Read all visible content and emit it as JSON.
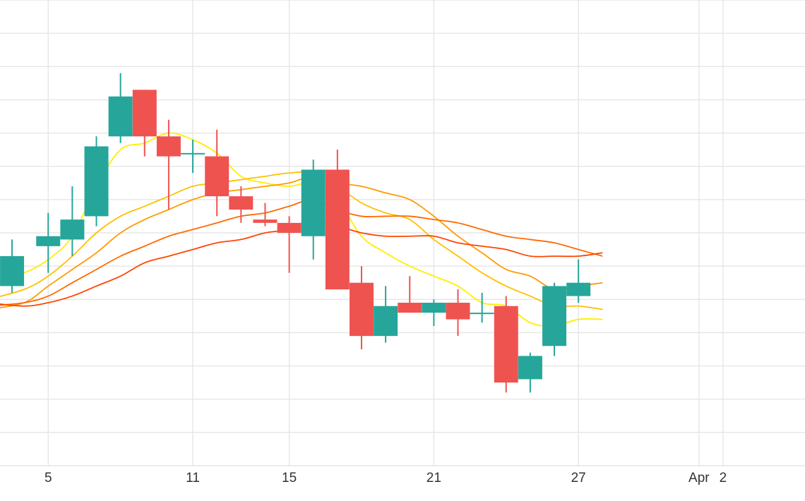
{
  "chart_data": {
    "type": "candlestick",
    "x_tick_labels": [
      {
        "label": "5",
        "day": 5
      },
      {
        "label": "11",
        "day": 11
      },
      {
        "label": "15",
        "day": 15
      },
      {
        "label": "21",
        "day": 21
      },
      {
        "label": "27",
        "day": 27
      },
      {
        "label": "Apr",
        "day": 32
      },
      {
        "label": "2",
        "day": 33
      }
    ],
    "xlim": [
      3,
      36.4
    ],
    "ylim": [
      0,
      14
    ],
    "grid": true,
    "colors": {
      "up": "#26a69a",
      "down": "#ef5350",
      "ma_lines": [
        "#ffee00",
        "#ffc000",
        "#ff9a00",
        "#ff6a00",
        "#ff4500"
      ],
      "grid": "#e6e6e6"
    },
    "candles": [
      {
        "day": 3.5,
        "open": 5.4,
        "high": 6.8,
        "low": 5.2,
        "close": 6.3
      },
      {
        "day": 5,
        "open": 6.6,
        "high": 7.6,
        "low": 5.8,
        "close": 6.9
      },
      {
        "day": 6,
        "open": 6.8,
        "high": 8.4,
        "low": 6.3,
        "close": 7.4
      },
      {
        "day": 7,
        "open": 7.5,
        "high": 9.9,
        "low": 7.2,
        "close": 9.6
      },
      {
        "day": 8,
        "open": 9.9,
        "high": 11.8,
        "low": 9.7,
        "close": 11.1
      },
      {
        "day": 9,
        "open": 11.3,
        "high": 11.3,
        "low": 9.3,
        "close": 9.9
      },
      {
        "day": 10,
        "open": 9.9,
        "high": 10.4,
        "low": 7.7,
        "close": 9.3
      },
      {
        "day": 11,
        "open": 9.4,
        "high": 9.8,
        "low": 8.8,
        "close": 9.4
      },
      {
        "day": 12,
        "open": 9.3,
        "high": 10.1,
        "low": 7.5,
        "close": 8.1
      },
      {
        "day": 13,
        "open": 8.1,
        "high": 8.4,
        "low": 7.3,
        "close": 7.7
      },
      {
        "day": 14,
        "open": 7.4,
        "high": 7.9,
        "low": 7.2,
        "close": 7.3
      },
      {
        "day": 15,
        "open": 7.3,
        "high": 7.5,
        "low": 5.8,
        "close": 7.0
      },
      {
        "day": 16,
        "open": 6.9,
        "high": 9.2,
        "low": 6.2,
        "close": 8.9
      },
      {
        "day": 17,
        "open": 8.9,
        "high": 9.5,
        "low": 5.3,
        "close": 5.3
      },
      {
        "day": 18,
        "open": 5.5,
        "high": 6.0,
        "low": 3.5,
        "close": 3.9
      },
      {
        "day": 19,
        "open": 3.9,
        "high": 5.4,
        "low": 3.7,
        "close": 4.8
      },
      {
        "day": 20,
        "open": 4.9,
        "high": 5.7,
        "low": 4.6,
        "close": 4.6
      },
      {
        "day": 21,
        "open": 4.6,
        "high": 5.0,
        "low": 4.2,
        "close": 4.9
      },
      {
        "day": 22,
        "open": 4.9,
        "high": 5.3,
        "low": 3.9,
        "close": 4.4
      },
      {
        "day": 23,
        "open": 4.6,
        "high": 5.2,
        "low": 4.3,
        "close": 4.6
      },
      {
        "day": 24,
        "open": 4.8,
        "high": 5.1,
        "low": 2.2,
        "close": 2.5
      },
      {
        "day": 25,
        "open": 2.6,
        "high": 3.4,
        "low": 2.2,
        "close": 3.3
      },
      {
        "day": 26,
        "open": 3.6,
        "high": 5.5,
        "low": 3.3,
        "close": 5.4
      },
      {
        "day": 27,
        "open": 5.1,
        "high": 6.2,
        "low": 4.9,
        "close": 5.5
      }
    ],
    "ma_series": [
      [
        [
          2.5,
          5.5
        ],
        [
          4,
          5.8
        ],
        [
          5,
          6.2
        ],
        [
          6,
          6.9
        ],
        [
          7,
          8.4
        ],
        [
          8,
          9.5
        ],
        [
          9,
          9.7
        ],
        [
          10,
          10.0
        ],
        [
          11,
          9.8
        ],
        [
          12,
          9.4
        ],
        [
          13,
          8.7
        ],
        [
          14,
          8.5
        ],
        [
          15,
          8.4
        ],
        [
          16,
          8.5
        ],
        [
          17,
          8.0
        ],
        [
          18,
          6.9
        ],
        [
          19,
          6.4
        ],
        [
          20,
          6.0
        ],
        [
          21,
          5.7
        ],
        [
          22,
          5.4
        ],
        [
          23,
          4.9
        ],
        [
          24,
          4.8
        ],
        [
          25,
          4.3
        ],
        [
          26,
          4.2
        ],
        [
          27,
          4.4
        ],
        [
          28,
          4.4
        ]
      ],
      [
        [
          2.5,
          5.0
        ],
        [
          4,
          5.3
        ],
        [
          5,
          5.7
        ],
        [
          6,
          6.3
        ],
        [
          7,
          7.0
        ],
        [
          8,
          7.5
        ],
        [
          9,
          7.8
        ],
        [
          10,
          8.1
        ],
        [
          11,
          8.4
        ],
        [
          12,
          8.5
        ],
        [
          13,
          8.6
        ],
        [
          14,
          8.7
        ],
        [
          15,
          8.8
        ],
        [
          16,
          8.8
        ],
        [
          17,
          8.4
        ],
        [
          18,
          7.9
        ],
        [
          19,
          7.6
        ],
        [
          20,
          7.4
        ],
        [
          21,
          6.8
        ],
        [
          22,
          6.3
        ],
        [
          23,
          5.8
        ],
        [
          24,
          5.4
        ],
        [
          25,
          5.1
        ],
        [
          26,
          4.8
        ],
        [
          27,
          4.8
        ],
        [
          28,
          4.7
        ]
      ],
      [
        [
          2.5,
          4.7
        ],
        [
          4,
          4.9
        ],
        [
          5,
          5.4
        ],
        [
          6,
          5.9
        ],
        [
          7,
          6.4
        ],
        [
          8,
          7.0
        ],
        [
          9,
          7.4
        ],
        [
          10,
          7.7
        ],
        [
          11,
          8.0
        ],
        [
          12,
          8.2
        ],
        [
          13,
          8.3
        ],
        [
          14,
          8.4
        ],
        [
          15,
          8.5
        ],
        [
          16,
          8.7
        ],
        [
          17,
          8.5
        ],
        [
          18,
          8.4
        ],
        [
          19,
          8.2
        ],
        [
          20,
          8.0
        ],
        [
          21,
          7.5
        ],
        [
          22,
          6.9
        ],
        [
          23,
          6.4
        ],
        [
          24,
          5.9
        ],
        [
          25,
          5.7
        ],
        [
          26,
          5.3
        ],
        [
          27,
          5.4
        ],
        [
          28,
          5.5
        ]
      ],
      [
        [
          2.5,
          4.8
        ],
        [
          4,
          4.9
        ],
        [
          5,
          5.1
        ],
        [
          6,
          5.5
        ],
        [
          7,
          5.9
        ],
        [
          8,
          6.3
        ],
        [
          9,
          6.6
        ],
        [
          10,
          6.9
        ],
        [
          11,
          7.1
        ],
        [
          12,
          7.3
        ],
        [
          13,
          7.5
        ],
        [
          14,
          7.6
        ],
        [
          15,
          7.8
        ],
        [
          16,
          8.0
        ],
        [
          17,
          7.7
        ],
        [
          18,
          7.5
        ],
        [
          19,
          7.5
        ],
        [
          20,
          7.5
        ],
        [
          21,
          7.4
        ],
        [
          22,
          7.3
        ],
        [
          23,
          7.1
        ],
        [
          24,
          6.9
        ],
        [
          25,
          6.8
        ],
        [
          26,
          6.7
        ],
        [
          27,
          6.5
        ],
        [
          28,
          6.3
        ]
      ],
      [
        [
          2.5,
          4.9
        ],
        [
          4,
          4.8
        ],
        [
          5,
          4.9
        ],
        [
          6,
          5.1
        ],
        [
          7,
          5.4
        ],
        [
          8,
          5.7
        ],
        [
          9,
          6.1
        ],
        [
          10,
          6.3
        ],
        [
          11,
          6.5
        ],
        [
          12,
          6.7
        ],
        [
          13,
          6.8
        ],
        [
          14,
          7.0
        ],
        [
          15,
          7.1
        ],
        [
          16,
          7.3
        ],
        [
          17,
          7.2
        ],
        [
          18,
          7.0
        ],
        [
          19,
          6.9
        ],
        [
          20,
          6.9
        ],
        [
          21,
          6.9
        ],
        [
          22,
          6.7
        ],
        [
          23,
          6.6
        ],
        [
          24,
          6.5
        ],
        [
          25,
          6.3
        ],
        [
          26,
          6.3
        ],
        [
          27,
          6.3
        ],
        [
          28,
          6.4
        ]
      ]
    ]
  }
}
